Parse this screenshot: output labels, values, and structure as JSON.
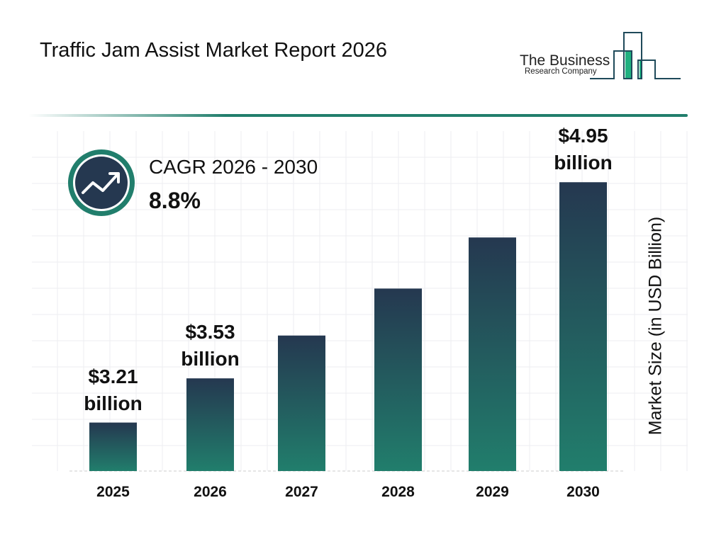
{
  "header": {
    "title": "Traffic Jam Assist Market Report 2026"
  },
  "logo": {
    "line1": "The Business",
    "line2": "Research Company"
  },
  "cagr": {
    "label": "CAGR 2026 - 2030",
    "value": "8.8%",
    "icon": "trending-up-icon"
  },
  "colors": {
    "bar_top": "#253850",
    "bar_bottom": "#217e6c",
    "accent": "#217e6c",
    "logo_green": "#1fb080"
  },
  "chart_data": {
    "type": "bar",
    "categories": [
      "2025",
      "2026",
      "2027",
      "2028",
      "2029",
      "2030"
    ],
    "values": [
      3.21,
      3.53,
      3.84,
      4.18,
      4.55,
      4.95
    ],
    "data_labels": [
      {
        "index": 0,
        "amount": "$3.21",
        "unit": "billion"
      },
      {
        "index": 1,
        "amount": "$3.53",
        "unit": "billion"
      },
      {
        "index": 5,
        "amount": "$4.95",
        "unit": "billion"
      }
    ],
    "ylabel": "Market Size (in USD Billion)",
    "xlabel": "",
    "grid": true
  }
}
